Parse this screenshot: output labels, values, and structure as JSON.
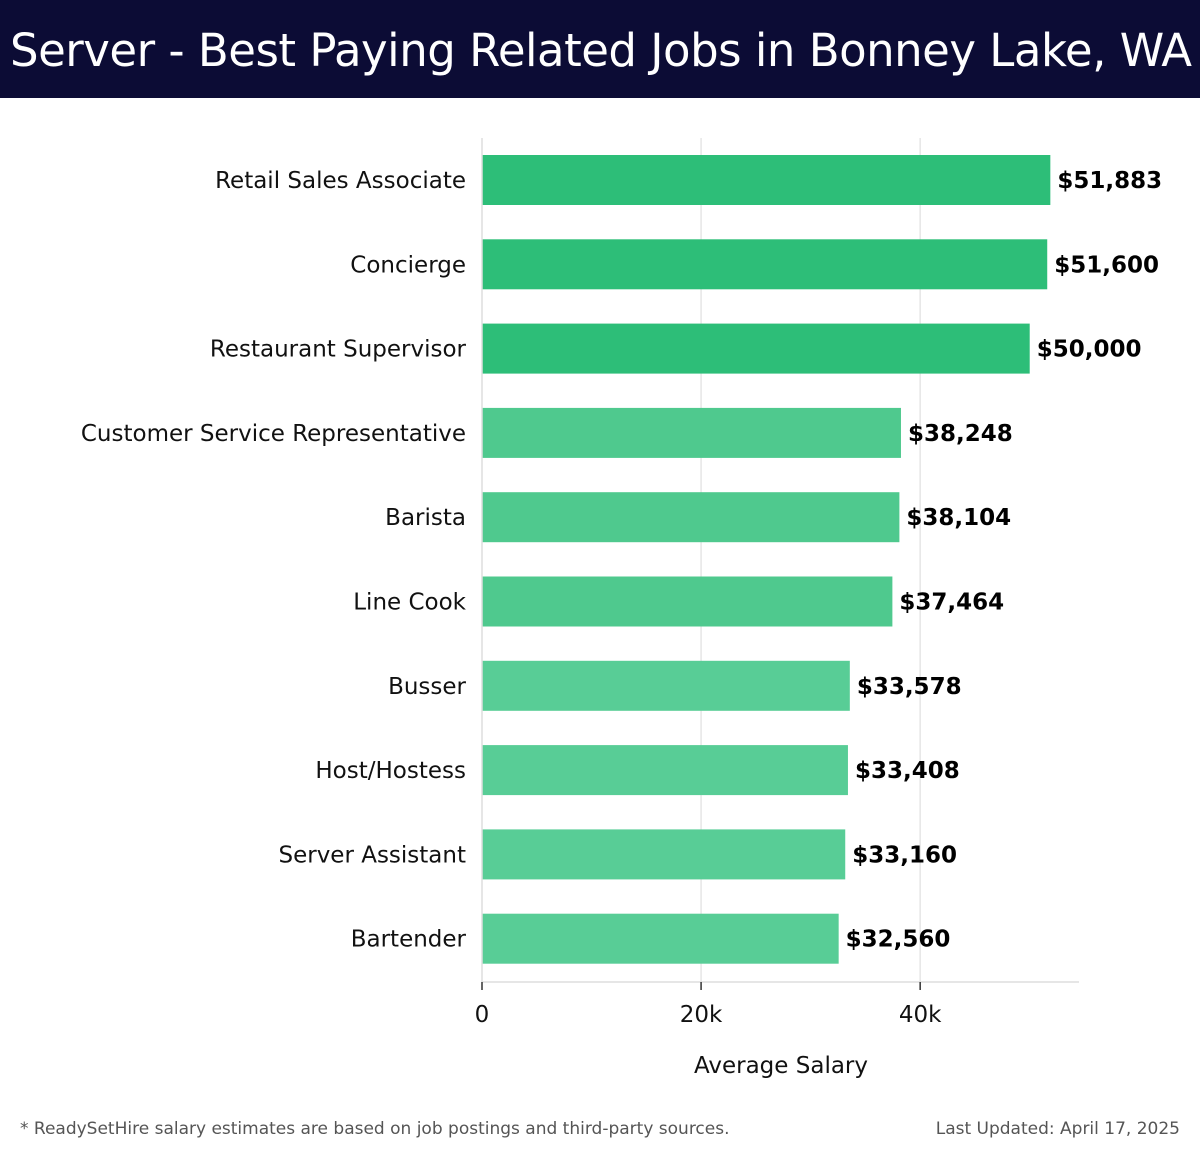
{
  "header": {
    "title": "Server - Best Paying Related Jobs in Bonney Lake, WA"
  },
  "chart_data": {
    "type": "bar",
    "orientation": "horizontal",
    "xlabel": "Average Salary",
    "ylabel": "",
    "xlim": [
      0,
      54500
    ],
    "x_ticks": [
      0,
      20000,
      40000
    ],
    "x_tick_labels": [
      "0",
      "20k",
      "40k"
    ],
    "grid": "vertical",
    "categories": [
      "Retail Sales Associate",
      "Concierge",
      "Restaurant Supervisor",
      "Customer Service Representative",
      "Barista",
      "Line Cook",
      "Busser",
      "Host/Hostess",
      "Server Assistant",
      "Bartender"
    ],
    "values": [
      51883,
      51600,
      50000,
      38248,
      38104,
      37464,
      33578,
      33408,
      33160,
      32560
    ],
    "value_labels": [
      "$51,883",
      "$51,600",
      "$50,000",
      "$38,248",
      "$38,104",
      "$37,464",
      "$33,578",
      "$33,408",
      "$33,160",
      "$32,560"
    ],
    "colors": {
      "top": "#2dbe78",
      "middle": "#4fc98e",
      "bottom": "#58cd96"
    }
  },
  "footer": {
    "note": "* ReadySetHire salary estimates are based on job postings and third-party sources.",
    "updated": "Last Updated: April 17, 2025"
  }
}
